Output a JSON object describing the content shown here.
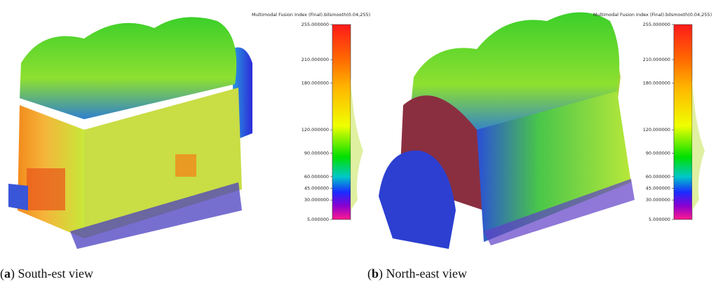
{
  "panels": [
    {
      "colorbar": {
        "title": "Multimodal Fusion Index (Final).bilsmooth(0.04,255)",
        "range": [
          5,
          255
        ],
        "ticks": [
          {
            "value": 255,
            "label": "255.000000"
          },
          {
            "value": 210,
            "label": "210.000000"
          },
          {
            "value": 180,
            "label": "180.000000"
          },
          {
            "value": 120,
            "label": "120.000000"
          },
          {
            "value": 90,
            "label": "90.000000"
          },
          {
            "value": 60,
            "label": "60.000000"
          },
          {
            "value": 45,
            "label": "45.000000"
          },
          {
            "value": 30,
            "label": "30.000000"
          },
          {
            "value": 5,
            "label": "5.000000"
          }
        ]
      },
      "caption": {
        "open": "(",
        "label": "a",
        "close": ")",
        "text": "South-est view"
      }
    },
    {
      "colorbar": {
        "title": "Multimodal Fusion Index (Final).bilsmooth(0.04,255)",
        "range": [
          5,
          255
        ],
        "ticks": [
          {
            "value": 255,
            "label": "255.000000"
          },
          {
            "value": 210,
            "label": "210.000000"
          },
          {
            "value": 180,
            "label": "180.000000"
          },
          {
            "value": 120,
            "label": "120.000000"
          },
          {
            "value": 90,
            "label": "90.000000"
          },
          {
            "value": 60,
            "label": "60.000000"
          },
          {
            "value": 45,
            "label": "45.000000"
          },
          {
            "value": 30,
            "label": "30.000000"
          },
          {
            "value": 5,
            "label": "5.000000"
          }
        ]
      },
      "caption": {
        "open": "(",
        "label": "b",
        "close": ")",
        "text": "North-east view"
      }
    }
  ]
}
